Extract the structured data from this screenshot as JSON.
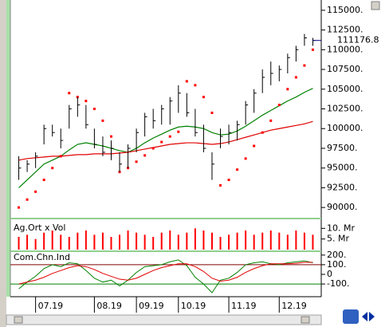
{
  "chart_data": [
    {
      "type": "ohlc",
      "color": "#000000",
      "xlim": [
        -1,
        36
      ],
      "xticks": [
        {
          "value": 2,
          "label": "07.19"
        },
        {
          "value": 9,
          "label": "08.19"
        },
        {
          "value": 14,
          "label": "09.19"
        },
        {
          "value": 19,
          "label": "10.19"
        },
        {
          "value": 25,
          "label": "11.19"
        },
        {
          "value": 31,
          "label": "12.19"
        }
      ],
      "ylim": [
        88800,
        115900
      ],
      "yticks": [
        {
          "value": 115000,
          "label": "115000."
        },
        {
          "value": 112500,
          "label": "112500."
        },
        {
          "value": 110000,
          "label": "110000."
        },
        {
          "value": 107500,
          "label": "107500."
        },
        {
          "value": 105000,
          "label": "105000."
        },
        {
          "value": 102500,
          "label": "102500."
        },
        {
          "value": 100000,
          "label": "100000."
        },
        {
          "value": 97500,
          "label": "97500."
        },
        {
          "value": 95000,
          "label": "95000."
        },
        {
          "value": 92500,
          "label": "92500."
        },
        {
          "value": 90000,
          "label": "90000."
        }
      ],
      "high": [
        96500,
        96000,
        97000,
        100500,
        100500,
        100000,
        103000,
        104000,
        103000,
        100000,
        99000,
        98500,
        97000,
        98000,
        100000,
        102000,
        102500,
        103000,
        104000,
        105500,
        104500,
        102500,
        100500,
        97000,
        100000,
        100500,
        101000,
        103500,
        105000,
        107500,
        108500,
        108000,
        109500,
        110500,
        112000,
        111500
      ],
      "low": [
        93500,
        94500,
        95000,
        98000,
        99000,
        97500,
        100000,
        101500,
        100000,
        97500,
        96500,
        96000,
        94500,
        95000,
        97000,
        99000,
        100000,
        100500,
        100500,
        102000,
        101500,
        99000,
        97000,
        93500,
        97500,
        98000,
        98500,
        100500,
        102000,
        104500,
        105500,
        106000,
        107000,
        108500,
        110500,
        110500
      ],
      "close": [
        95000,
        95500,
        96500,
        100000,
        99500,
        98500,
        102500,
        103000,
        100500,
        98000,
        97000,
        97500,
        95500,
        97500,
        99500,
        101500,
        101000,
        102500,
        103500,
        104500,
        102000,
        99500,
        97500,
        95500,
        99000,
        99500,
        100500,
        103000,
        104500,
        106500,
        107000,
        107500,
        109000,
        110000,
        111500,
        111176.8
      ],
      "last_value": 111176.8,
      "last_color": "#000080",
      "series": [
        {
          "style": "line",
          "color": "#008000",
          "values": [
            92500,
            93500,
            94500,
            95500,
            96000,
            96500,
            97300,
            98000,
            98200,
            98000,
            97800,
            97500,
            97200,
            97000,
            97500,
            98200,
            98800,
            99300,
            99800,
            100200,
            100300,
            100200,
            100000,
            99500,
            99200,
            99300,
            99700,
            100300,
            101000,
            101700,
            102300,
            102900,
            103500,
            104000,
            104600,
            105100
          ]
        },
        {
          "style": "line",
          "color": "#e00000",
          "values": [
            96000,
            96200,
            96300,
            96400,
            96500,
            96500,
            96600,
            96700,
            96700,
            96800,
            96800,
            96800,
            96900,
            97000,
            97200,
            97400,
            97600,
            97800,
            98000,
            98100,
            98200,
            98200,
            98100,
            98000,
            98100,
            98300,
            98600,
            98900,
            99200,
            99500,
            99800,
            100000,
            100200,
            100400,
            100600,
            100900
          ]
        },
        {
          "style": "dots",
          "color": "#ff0000",
          "values": [
            90000,
            91000,
            92000,
            93500,
            95000,
            96500,
            104500,
            104000,
            103500,
            102500,
            101000,
            99000,
            94500,
            95000,
            95800,
            96600,
            97500,
            98300,
            99000,
            99600,
            106000,
            105500,
            104000,
            102000,
            92800,
            93500,
            94800,
            96200,
            97800,
            99500,
            101000,
            103000,
            105000,
            106500,
            108000,
            110000
          ]
        }
      ]
    },
    {
      "type": "bar",
      "title": "Ag.Ort x Vol",
      "color": "#ff0000",
      "ylim": [
        0,
        12000000
      ],
      "yticks": [
        {
          "value": 10000000,
          "label": "10. Mr"
        },
        {
          "value": 5000000,
          "label": "5. Mr"
        }
      ],
      "values": [
        6000000,
        7000000,
        5000000,
        8000000,
        9000000,
        7000000,
        6000000,
        8000000,
        9000000,
        7000000,
        8000000,
        6000000,
        7000000,
        9000000,
        8000000,
        7000000,
        6000000,
        8000000,
        9000000,
        7000000,
        8000000,
        10000000,
        9000000,
        8000000,
        6000000,
        7000000,
        8000000,
        9000000,
        7000000,
        8000000,
        9000000,
        8000000,
        7000000,
        9000000,
        8000000,
        7000000
      ]
    },
    {
      "type": "line",
      "title": "Com.Chn.Ind",
      "ylim": [
        -215,
        215
      ],
      "yticks": [
        {
          "value": 200,
          "label": "200."
        },
        {
          "value": 100,
          "label": "100."
        },
        0,
        {
          "value": -100,
          "label": "-100."
        }
      ],
      "reference_lines": [
        {
          "value": 100,
          "color": "#800000"
        },
        {
          "value": -100,
          "color": "#008000"
        }
      ],
      "series": [
        {
          "color": "#008000",
          "values": [
            -150,
            -80,
            -20,
            60,
            100,
            80,
            120,
            110,
            40,
            -40,
            -80,
            -60,
            -120,
            -60,
            20,
            80,
            90,
            100,
            130,
            150,
            90,
            -30,
            -100,
            -190,
            -60,
            -40,
            20,
            100,
            120,
            130,
            110,
            100,
            120,
            130,
            140,
            120
          ]
        },
        {
          "color": "#e00000",
          "values": [
            -100,
            -80,
            -60,
            -30,
            10,
            40,
            70,
            90,
            80,
            50,
            10,
            -20,
            -50,
            -60,
            -40,
            0,
            40,
            70,
            90,
            110,
            110,
            80,
            30,
            -40,
            -70,
            -60,
            -30,
            20,
            60,
            90,
            110,
            110,
            110,
            115,
            125,
            125
          ]
        }
      ]
    }
  ]
}
